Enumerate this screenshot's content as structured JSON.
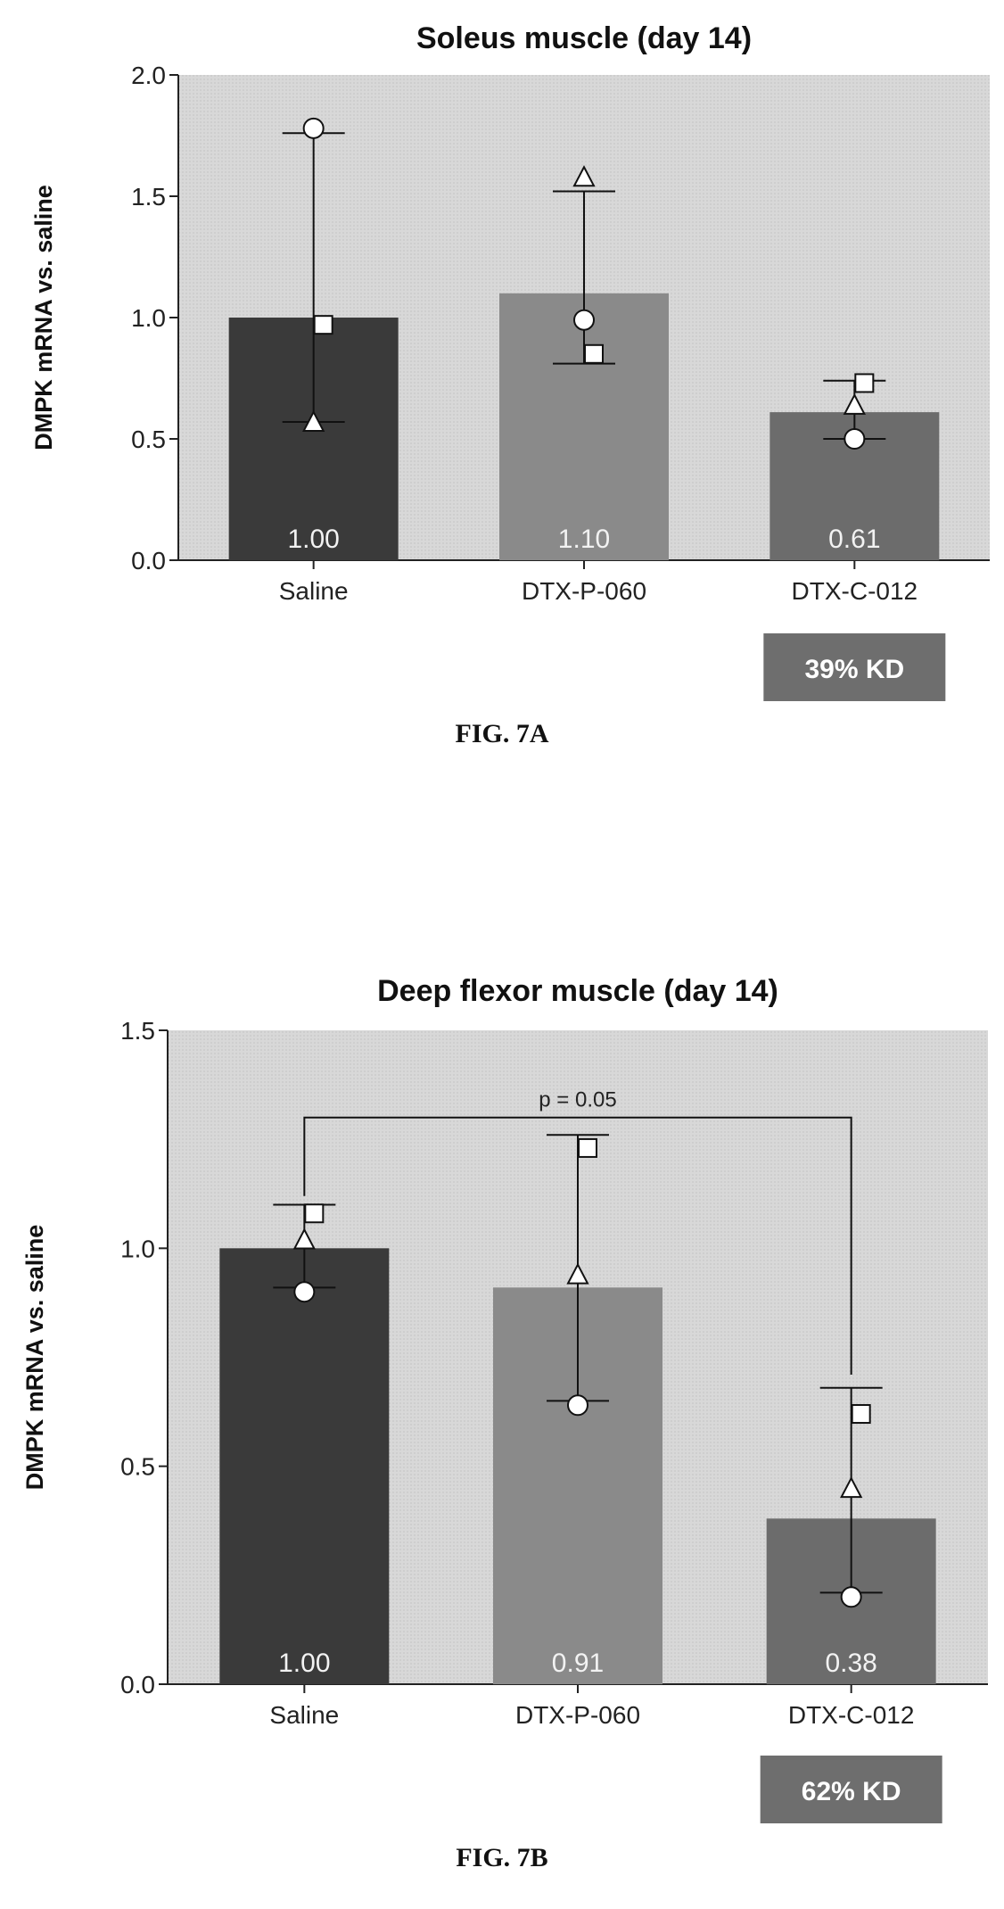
{
  "chart_data": [
    {
      "type": "bar",
      "title": "Soleus muscle (day 14)",
      "ylabel": "DMPK mRNA vs. saline",
      "xlabel": "",
      "categories": [
        "Saline",
        "DTX-P-060",
        "DTX-C-012"
      ],
      "values": [
        1.0,
        1.1,
        0.61
      ],
      "value_labels": [
        "1.00",
        "1.10",
        "0.61"
      ],
      "bar_colors": [
        "#3a3a3a",
        "#8a8a8a",
        "#6c6c6c"
      ],
      "ylim": [
        0,
        2.0
      ],
      "yticks": [
        "0.0",
        "0.5",
        "1.0",
        "1.5",
        "2.0"
      ],
      "ytick_values": [
        0,
        0.5,
        1.0,
        1.5,
        2.0
      ],
      "error_bars": [
        {
          "low": 0.57,
          "high": 1.76
        },
        {
          "low": 0.81,
          "high": 1.52
        },
        {
          "low": 0.5,
          "high": 0.74
        }
      ],
      "points": [
        [
          {
            "shape": "circle",
            "y": 1.78
          },
          {
            "shape": "square",
            "y": 0.97
          },
          {
            "shape": "triangle",
            "y": 0.57
          }
        ],
        [
          {
            "shape": "triangle",
            "y": 1.58
          },
          {
            "shape": "circle",
            "y": 0.99
          },
          {
            "shape": "square",
            "y": 0.85
          }
        ],
        [
          {
            "shape": "square",
            "y": 0.73
          },
          {
            "shape": "triangle",
            "y": 0.64
          },
          {
            "shape": "circle",
            "y": 0.5
          }
        ]
      ],
      "kd_label": "39% KD",
      "caption": "FIG. 7A",
      "grid": false,
      "background": "#d8d8d8"
    },
    {
      "type": "bar",
      "title": "Deep flexor muscle (day 14)",
      "ylabel": "DMPK mRNA vs. saline",
      "xlabel": "",
      "categories": [
        "Saline",
        "DTX-P-060",
        "DTX-C-012"
      ],
      "values": [
        1.0,
        0.91,
        0.38
      ],
      "value_labels": [
        "1.00",
        "0.91",
        "0.38"
      ],
      "bar_colors": [
        "#3a3a3a",
        "#8a8a8a",
        "#6c6c6c"
      ],
      "ylim": [
        0,
        1.5
      ],
      "yticks": [
        "0.0",
        "0.5",
        "1.0",
        "1.5"
      ],
      "ytick_values": [
        0,
        0.5,
        1.0,
        1.5
      ],
      "error_bars": [
        {
          "low": 0.91,
          "high": 1.1
        },
        {
          "low": 0.65,
          "high": 1.26
        },
        {
          "low": 0.21,
          "high": 0.68
        }
      ],
      "points": [
        [
          {
            "shape": "square",
            "y": 1.08
          },
          {
            "shape": "triangle",
            "y": 1.02
          },
          {
            "shape": "circle",
            "y": 0.9
          }
        ],
        [
          {
            "shape": "square",
            "y": 1.23
          },
          {
            "shape": "triangle",
            "y": 0.94
          },
          {
            "shape": "circle",
            "y": 0.64
          }
        ],
        [
          {
            "shape": "square",
            "y": 0.62
          },
          {
            "shape": "triangle",
            "y": 0.45
          },
          {
            "shape": "circle",
            "y": 0.2
          }
        ]
      ],
      "significance": {
        "from": 0,
        "to": 2,
        "y": 1.3,
        "label": "p = 0.05"
      },
      "kd_label": "62% KD",
      "caption": "FIG. 7B",
      "grid": false,
      "background": "#d8d8d8"
    }
  ]
}
